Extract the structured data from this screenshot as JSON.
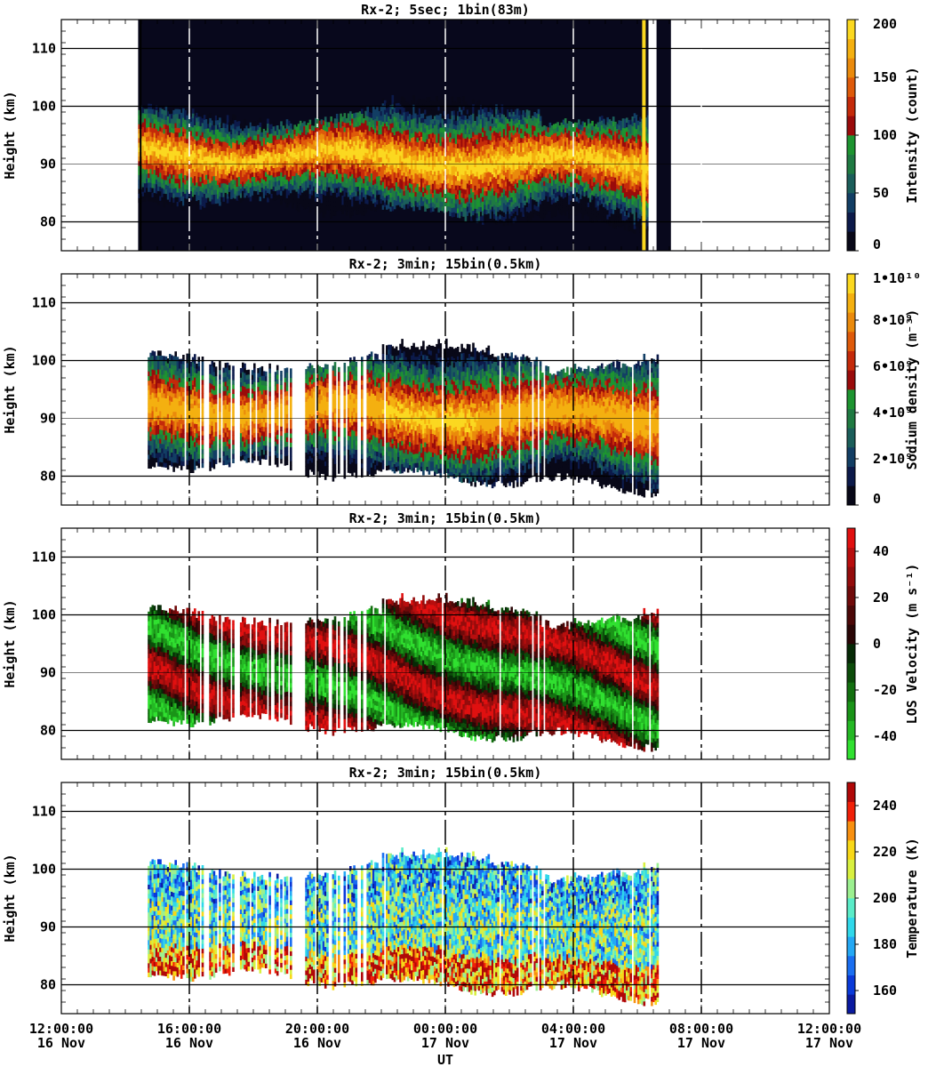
{
  "figure": {
    "x_axis_label": "UT",
    "x_ticks": [
      {
        "t": 0,
        "time": "12:00:00",
        "date": "16 Nov"
      },
      {
        "t": 4,
        "time": "16:00:00",
        "date": "16 Nov"
      },
      {
        "t": 8,
        "time": "20:00:00",
        "date": "16 Nov"
      },
      {
        "t": 12,
        "time": "00:00:00",
        "date": "17 Nov"
      },
      {
        "t": 16,
        "time": "04:00:00",
        "date": "17 Nov"
      },
      {
        "t": 20,
        "time": "08:00:00",
        "date": "17 Nov"
      },
      {
        "t": 24,
        "time": "12:00:00",
        "date": "17 Nov"
      }
    ]
  },
  "chart_data": [
    {
      "type": "heatmap",
      "title": "Rx-2;  5sec; 1bin(83m)",
      "ylabel": "Height (km)",
      "ylim": [
        75,
        115
      ],
      "yticks": [
        80,
        90,
        100,
        110
      ],
      "xlim_hours_after_12UT": [
        0,
        24
      ],
      "data_extent_hours": [
        2.4,
        18.4
      ],
      "layer_km": {
        "bottom": [
          87,
          80
        ],
        "top": [
          97,
          94
        ],
        "peak_km": 91
      },
      "colorbar": {
        "label": "Intensity (count)",
        "ticks": [
          "0",
          "50",
          "100",
          "150",
          "200"
        ],
        "range": [
          0,
          200
        ],
        "colors": [
          "#080818",
          "#0c1a4a",
          "#123e64",
          "#1b5e5a",
          "#1f7a42",
          "#1d9430",
          "#9a0b0b",
          "#c42a0a",
          "#de5a0a",
          "#ea8a0c",
          "#f4b010",
          "#fbd820"
        ]
      }
    },
    {
      "type": "heatmap",
      "title": "Rx-2; 3min; 15bin(0.5km)",
      "ylabel": "Height (km)",
      "ylim": [
        75,
        115
      ],
      "yticks": [
        80,
        90,
        100,
        110
      ],
      "data_extent_hours": [
        2.7,
        18.6
      ],
      "colorbar": {
        "label": "Sodium density (m⁻³)",
        "ticks": [
          "0",
          "2•10⁹",
          "4•10⁹",
          "6•10⁹",
          "8•10⁹",
          "1•10¹⁰"
        ],
        "range": [
          0,
          10000000000
        ],
        "colors": [
          "#080818",
          "#0c1a4a",
          "#123e64",
          "#1b5e5a",
          "#1f7a42",
          "#1d9430",
          "#9a0b0b",
          "#c42a0a",
          "#de5a0a",
          "#ea8a0c",
          "#f4b010",
          "#fbd820"
        ]
      }
    },
    {
      "type": "heatmap",
      "title": "Rx-2; 3min; 15bin(0.5km)",
      "ylabel": "Height (km)",
      "ylim": [
        75,
        115
      ],
      "yticks": [
        80,
        90,
        100,
        110
      ],
      "data_extent_hours": [
        2.7,
        18.6
      ],
      "colorbar": {
        "label": "LOS Velocity (m s⁻¹)",
        "ticks": [
          "-40",
          "-20",
          "0",
          "20",
          "40"
        ],
        "range": [
          -50,
          50
        ],
        "colors": [
          "#30e030",
          "#24b824",
          "#1a9418",
          "#137010",
          "#0c4c0a",
          "#062a06",
          "#2a0606",
          "#4c0808",
          "#700a0a",
          "#940c0c",
          "#b80e0e",
          "#e01010"
        ]
      }
    },
    {
      "type": "heatmap",
      "title": "Rx-2; 3min; 15bin(0.5km)",
      "ylabel": "Height (km)",
      "ylim": [
        75,
        115
      ],
      "yticks": [
        80,
        90,
        100,
        110
      ],
      "data_extent_hours": [
        2.7,
        18.6
      ],
      "colorbar": {
        "label": "Temperature (K)",
        "ticks": [
          "160",
          "180",
          "200",
          "220",
          "240"
        ],
        "range": [
          150,
          250
        ],
        "colors": [
          "#0a1aa0",
          "#0a3ad8",
          "#1a6ef0",
          "#24a8f4",
          "#30d8ea",
          "#5aecc8",
          "#9cf090",
          "#d8f040",
          "#f8d818",
          "#f89010",
          "#f02008",
          "#b00808"
        ]
      }
    }
  ]
}
